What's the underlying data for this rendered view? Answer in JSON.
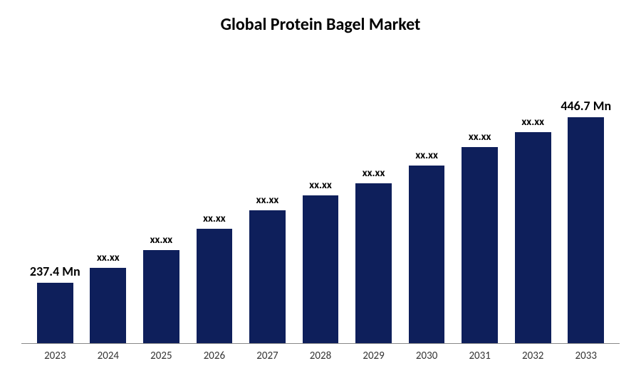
{
  "chart": {
    "type": "bar",
    "title": "Global Protein Bagel Market",
    "title_fontsize": 24,
    "title_fontweight": "bold",
    "title_color": "#000000",
    "background_color": "#ffffff",
    "bar_color": "#0e1f5b",
    "axis_line_color": "#888888",
    "xlabel_fontsize": 15,
    "xlabel_color": "#333333",
    "datalabel_fontsize": 15,
    "datalabel_fontweight": "bold",
    "datalabel_color": "#000000",
    "ylim": [
      0,
      500
    ],
    "bar_width_ratio": 0.68,
    "categories": [
      "2023",
      "2024",
      "2025",
      "2026",
      "2027",
      "2028",
      "2029",
      "2030",
      "2031",
      "2032",
      "2033"
    ],
    "values": [
      100,
      125,
      155,
      190,
      220,
      245,
      265,
      295,
      325,
      350,
      375
    ],
    "data_labels": [
      "237.4 Mn",
      "xx.xx",
      "xx.xx",
      "xx.xx",
      "xx.xx",
      "xx.xx",
      "xx.xx",
      "xx.xx",
      "xx.xx",
      "xx.xx",
      "446.7 Mn"
    ],
    "special_label_fontsize": 18
  }
}
